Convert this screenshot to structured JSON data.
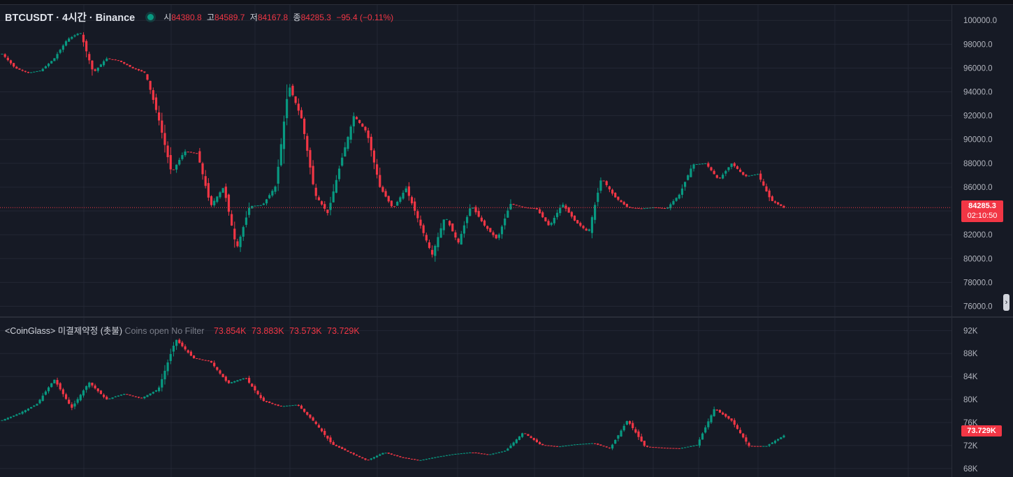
{
  "legend": {
    "symbol": "BTCUSDT · 4시간 · Binance",
    "o_label": "시",
    "o_value": "84380.8",
    "h_label": "고",
    "h_value": "84589.7",
    "l_label": "저",
    "l_value": "84167.8",
    "c_label": "종",
    "c_value": "84285.3",
    "change": "−95.4 (−0.11%)"
  },
  "oi_legend": {
    "name": "<CoinGlass> 미결제약정 (촛불)",
    "params": "Coins open No Filter",
    "o": "73.854K",
    "h": "73.883K",
    "l": "73.573K",
    "c": "73.729K"
  },
  "price_axis": {
    "labels": [
      "100000.0",
      "98000.0",
      "96000.0",
      "94000.0",
      "92000.0",
      "90000.0",
      "88000.0",
      "86000.0",
      "84000.0",
      "82000.0",
      "80000.0",
      "78000.0",
      "76000.0"
    ]
  },
  "oi_axis": {
    "labels": [
      "92K",
      "88K",
      "84K",
      "80K",
      "76K",
      "72K",
      "68K"
    ]
  },
  "last_price": {
    "price": "84285.3",
    "countdown": "02:10:50"
  },
  "oi_last": "73.729K",
  "colors": {
    "up": "#089981",
    "down": "#f23645",
    "background": "#161a25",
    "grid": "#232734"
  },
  "chart_data": [
    {
      "type": "candlestick",
      "title": "BTCUSDT · 4시간 · Binance",
      "ylim": [
        75500,
        100600
      ],
      "approx_close_path": [
        97200,
        96000,
        95600,
        95800,
        96800,
        98400,
        99000,
        95600,
        96800,
        96600,
        96000,
        95600,
        91800,
        87200,
        89000,
        88800,
        84400,
        86000,
        80800,
        84400,
        84500,
        86100,
        94600,
        91700,
        85400,
        83800,
        88100,
        92000,
        90600,
        86000,
        84200,
        85900,
        83100,
        80300,
        83600,
        81300,
        84500,
        82800,
        81600,
        84600,
        84300,
        84200,
        82700,
        84600,
        83100,
        82200,
        86800,
        85200,
        84300,
        84200,
        84300,
        84200,
        85400,
        87900,
        88000,
        86600,
        88000,
        86900,
        87100,
        84900,
        84285
      ]
    },
    {
      "type": "candlestick",
      "title": "<CoinGlass> 미결제약정 (촛불)",
      "ylim": [
        67000,
        93500
      ],
      "approx_close_path": [
        76400,
        77600,
        79200,
        83500,
        78500,
        83000,
        80000,
        81000,
        80200,
        81800,
        90500,
        87200,
        86600,
        82800,
        83800,
        79800,
        78800,
        79100,
        76000,
        72200,
        70800,
        69400,
        70800,
        69900,
        69400,
        70000,
        70500,
        70800,
        70400,
        71100,
        74300,
        72100,
        71800,
        72200,
        72400,
        71500,
        76400,
        71800,
        71600,
        71500,
        72100,
        78400,
        76300,
        71900,
        71900,
        73729
      ]
    }
  ]
}
